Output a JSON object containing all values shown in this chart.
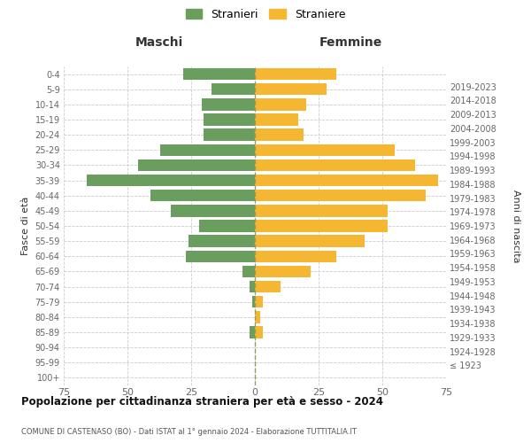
{
  "age_groups": [
    "100+",
    "95-99",
    "90-94",
    "85-89",
    "80-84",
    "75-79",
    "70-74",
    "65-69",
    "60-64",
    "55-59",
    "50-54",
    "45-49",
    "40-44",
    "35-39",
    "30-34",
    "25-29",
    "20-24",
    "15-19",
    "10-14",
    "5-9",
    "0-4"
  ],
  "birth_years": [
    "≤ 1923",
    "1924-1928",
    "1929-1933",
    "1934-1938",
    "1939-1943",
    "1944-1948",
    "1949-1953",
    "1954-1958",
    "1959-1963",
    "1964-1968",
    "1969-1973",
    "1974-1978",
    "1979-1983",
    "1984-1988",
    "1989-1993",
    "1994-1998",
    "1999-2003",
    "2004-2008",
    "2009-2013",
    "2014-2018",
    "2019-2023"
  ],
  "maschi": [
    0,
    0,
    0,
    2,
    0,
    1,
    2,
    5,
    27,
    26,
    22,
    33,
    41,
    66,
    46,
    37,
    20,
    20,
    21,
    17,
    28
  ],
  "femmine": [
    0,
    0,
    0,
    3,
    2,
    3,
    10,
    22,
    32,
    43,
    52,
    52,
    67,
    72,
    63,
    55,
    19,
    17,
    20,
    28,
    32
  ],
  "maschi_color": "#6a9e5e",
  "femmine_color": "#f5b731",
  "background_color": "#ffffff",
  "grid_color": "#cccccc",
  "title": "Popolazione per cittadinanza straniera per età e sesso - 2024",
  "subtitle": "COMUNE DI CASTENASO (BO) - Dati ISTAT al 1° gennaio 2024 - Elaborazione TUTTITALIA.IT",
  "legend_stranieri": "Stranieri",
  "legend_straniere": "Straniere",
  "xlabel_left": "Maschi",
  "xlabel_right": "Femmine",
  "ylabel_left": "Fasce di età",
  "ylabel_right": "Anni di nascita",
  "xlim": 75
}
